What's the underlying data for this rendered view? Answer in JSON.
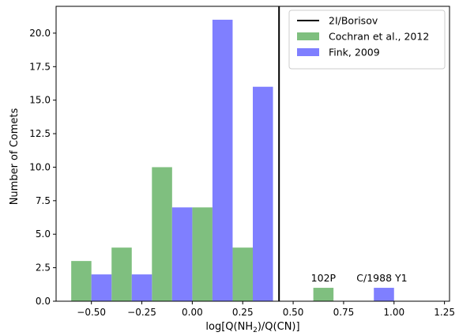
{
  "chart_data": {
    "type": "bar",
    "xlabel": {
      "prefix": "log[Q(NH",
      "sub": "2",
      "suffix": ")/Q(CN)]"
    },
    "ylabel": "Number of Comets",
    "xlim": [
      -0.675,
      1.275
    ],
    "ylim": [
      0,
      22
    ],
    "xticks": [
      -0.5,
      -0.25,
      0.0,
      0.25,
      0.5,
      0.75,
      1.0,
      1.25
    ],
    "xtick_labels": [
      "−0.50",
      "−0.25",
      "0.00",
      "0.25",
      "0.50",
      "0.75",
      "1.00",
      "1.25"
    ],
    "yticks": [
      0.0,
      2.5,
      5.0,
      7.5,
      10.0,
      12.5,
      15.0,
      17.5,
      20.0
    ],
    "ytick_labels": [
      "0.0",
      "2.5",
      "5.0",
      "7.5",
      "10.0",
      "12.5",
      "15.0",
      "17.5",
      "20.0"
    ],
    "bar_width": 0.1,
    "series": [
      {
        "name": "Cochran et al., 2012",
        "color": "#7fbf7f",
        "bars": [
          {
            "x": -0.55,
            "value": 3
          },
          {
            "x": -0.35,
            "value": 4
          },
          {
            "x": -0.15,
            "value": 10
          },
          {
            "x": 0.05,
            "value": 7
          },
          {
            "x": 0.25,
            "value": 4
          },
          {
            "x": 0.65,
            "value": 1
          }
        ]
      },
      {
        "name": "Fink, 2009",
        "color": "#7f7fff",
        "bars": [
          {
            "x": -0.45,
            "value": 2
          },
          {
            "x": -0.25,
            "value": 2
          },
          {
            "x": -0.05,
            "value": 7
          },
          {
            "x": 0.15,
            "value": 21
          },
          {
            "x": 0.35,
            "value": 16
          },
          {
            "x": 0.95,
            "value": 1
          }
        ]
      }
    ],
    "reference_line": {
      "name": "2I/Borisov",
      "x": 0.43,
      "color": "#000000"
    },
    "annotations": [
      {
        "text": "102P",
        "x": 0.65,
        "y": 1.25
      },
      {
        "text": "C/1988 Y1",
        "x": 0.94,
        "y": 1.25
      }
    ],
    "legend_position": "top-right",
    "grid": false
  }
}
